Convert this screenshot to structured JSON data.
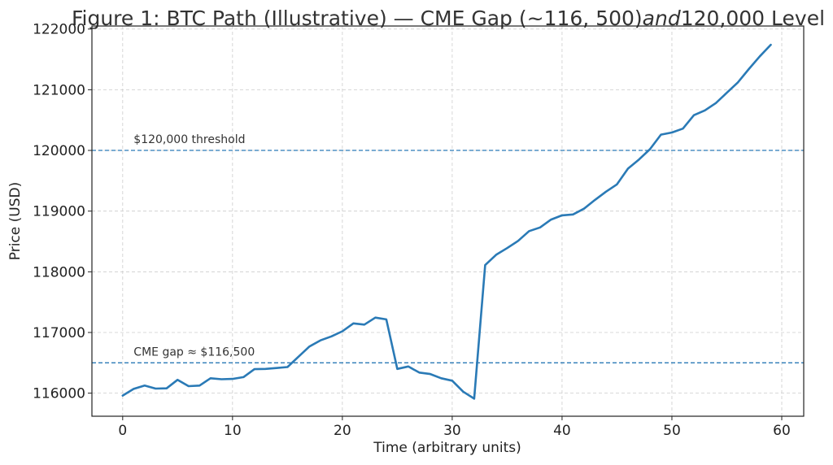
{
  "chart_data": {
    "type": "line",
    "title": {
      "part1": "Figure 1: BTC Path (Illustrative) — CME Gap (~116, 500)",
      "part2": "and",
      "part3": "120,000 Level"
    },
    "xlabel": "Time (arbitrary units)",
    "ylabel": "Price (USD)",
    "xlim": [
      -2.8,
      62
    ],
    "ylim": [
      115620,
      122050
    ],
    "xticks": [
      0,
      10,
      20,
      30,
      40,
      50,
      60
    ],
    "yticks": [
      116000,
      117000,
      118000,
      119000,
      120000,
      121000,
      122000
    ],
    "grid": true,
    "series": [
      {
        "color": "#2a7ab6",
        "x": [
          0,
          1,
          2,
          3,
          4,
          5,
          6,
          7,
          8,
          9,
          10,
          11,
          12,
          13,
          14,
          15,
          16,
          17,
          18,
          19,
          20,
          21,
          22,
          23,
          24,
          25,
          26,
          27,
          28,
          29,
          30,
          31,
          32,
          33,
          34,
          35,
          36,
          37,
          38,
          39,
          40,
          41,
          42,
          43,
          44,
          45,
          46,
          47,
          48,
          49,
          50,
          51,
          52,
          53,
          54,
          55,
          56,
          57,
          58,
          59
        ],
        "y": [
          115960,
          116070,
          116125,
          116075,
          116080,
          116220,
          116115,
          116125,
          116245,
          116230,
          116235,
          116265,
          116395,
          116400,
          116415,
          116430,
          116600,
          116770,
          116870,
          116935,
          117020,
          117150,
          117130,
          117245,
          117215,
          116400,
          116440,
          116340,
          116315,
          116245,
          116205,
          116025,
          115910,
          118110,
          118280,
          118390,
          118510,
          118670,
          118730,
          118860,
          118930,
          118945,
          119040,
          119185,
          119320,
          119440,
          119700,
          119850,
          120020,
          120260,
          120295,
          120360,
          120580,
          120660,
          120780,
          120950,
          121120,
          121340,
          121550,
          121740
        ]
      }
    ],
    "hlines": [
      {
        "y": 120000,
        "label": "$120,000 threshold",
        "label_x": 1,
        "color": "#2a7ab6"
      },
      {
        "y": 116500,
        "label": "CME gap ≈ $116,500",
        "label_x": 1,
        "color": "#2a7ab6"
      }
    ]
  }
}
